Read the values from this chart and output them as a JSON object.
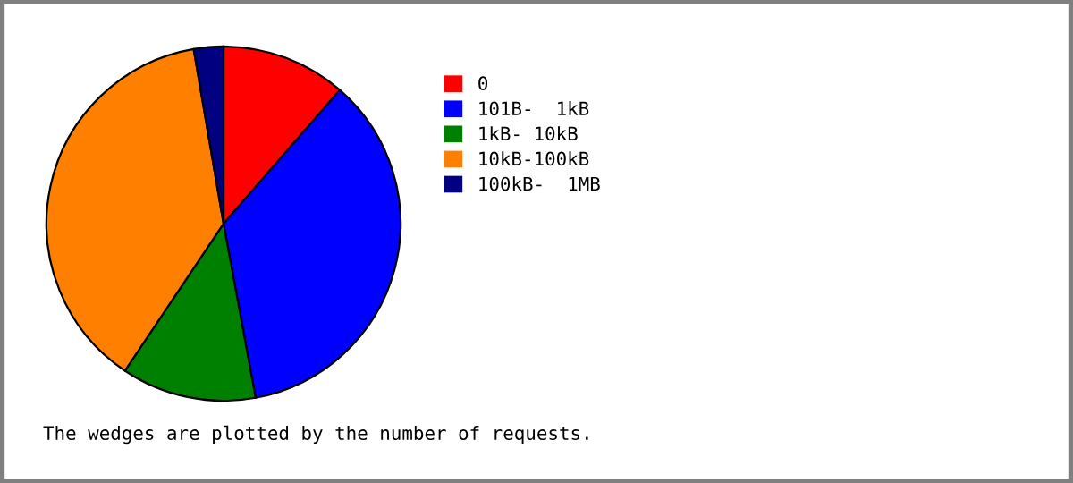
{
  "chart_data": {
    "type": "pie",
    "categories": [
      "0",
      "101B-  1kB",
      "1kB- 10kB",
      "10kB-100kB",
      "100kB-  1MB"
    ],
    "values": [
      11.4,
      35.7,
      12.3,
      37.9,
      2.7
    ],
    "colors": [
      "#ff0000",
      "#0000ff",
      "#008000",
      "#ff8000",
      "#000080"
    ],
    "legend": "right",
    "annotations": [
      "The wedges are plotted by the number of requests."
    ]
  }
}
